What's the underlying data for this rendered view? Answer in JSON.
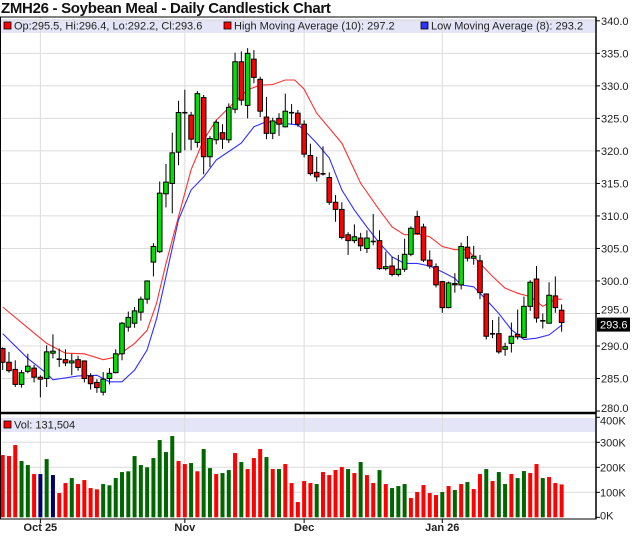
{
  "title": "ZMH26 - Soybean Meal - Daily Candlestick Chart",
  "legend": {
    "ohlc": "Op:295.5, Hi:296.4, Lo:292.2, Cl:293.6",
    "high_ma": "High Moving Average (10): 297.2",
    "low_ma": "Low Moving Average (8): 293.2",
    "volume": "Vol: 131,504"
  },
  "last_price_label": "293.6",
  "colors": {
    "up": "#00e000",
    "down": "#ff0000",
    "high_ma": "#ff3030",
    "low_ma": "#3030ff",
    "vol_up": "#006600",
    "vol_down": "#ff0000",
    "vol_other": "#000066",
    "legend_band": "#e4e6f8"
  },
  "chart_data": [
    {
      "type": "candlestick",
      "title": "ZMH26 - Soybean Meal - Daily Candlestick Chart",
      "ylim": [
        280,
        340
      ],
      "y_ticks": [
        "280.0",
        "285.0",
        "290.0",
        "295.0",
        "300.0",
        "305.0",
        "310.0",
        "315.0",
        "320.0",
        "325.0",
        "330.0",
        "335.0",
        "340.0"
      ],
      "x_ticks": [
        {
          "label": "Oct 25",
          "index": 6
        },
        {
          "label": "Nov",
          "index": 29
        },
        {
          "label": "Dec",
          "index": 48
        },
        {
          "label": "Jan 26",
          "index": 70
        }
      ],
      "grid": true,
      "ohlc": [
        [
          289.6,
          289.8,
          286.3,
          287.5
        ],
        [
          287.5,
          289.1,
          285.9,
          286.2
        ],
        [
          286.4,
          287.8,
          283.7,
          284.1
        ],
        [
          284.1,
          286.3,
          283.6,
          285.9
        ],
        [
          286.1,
          288.8,
          285.8,
          286.9
        ],
        [
          286.6,
          287.1,
          284.4,
          285.2
        ],
        [
          285.2,
          285.5,
          282.1,
          284.9
        ],
        [
          285.0,
          290.1,
          283.7,
          289.1
        ],
        [
          288.9,
          291.8,
          288.1,
          289.2
        ],
        [
          288.0,
          289.6,
          286.8,
          287.9
        ],
        [
          287.9,
          289.5,
          286.9,
          287.4
        ],
        [
          287.4,
          288.8,
          285.5,
          287.7
        ],
        [
          287.9,
          288.5,
          286.2,
          286.7
        ],
        [
          287.7,
          287.8,
          284.4,
          285.0
        ],
        [
          285.4,
          285.8,
          283.3,
          284.2
        ],
        [
          284.4,
          284.9,
          282.8,
          283.6
        ],
        [
          282.9,
          286.0,
          282.4,
          284.9
        ],
        [
          285.0,
          286.6,
          284.1,
          285.8
        ],
        [
          285.9,
          289.5,
          285.8,
          288.8
        ],
        [
          288.8,
          293.7,
          287.8,
          293.5
        ],
        [
          292.9,
          295.3,
          292.2,
          294.4
        ],
        [
          293.5,
          296.0,
          292.8,
          295.4
        ],
        [
          295.2,
          297.6,
          293.9,
          297.2
        ],
        [
          297.2,
          300.1,
          296.5,
          300.0
        ],
        [
          302.9,
          305.8,
          300.7,
          305.3
        ],
        [
          304.5,
          315.3,
          304.3,
          313.5
        ],
        [
          313.4,
          318.0,
          311.3,
          315.2
        ],
        [
          315.0,
          322.8,
          310.4,
          319.7
        ],
        [
          319.8,
          327.7,
          317.8,
          325.9
        ],
        [
          325.9,
          329.4,
          320.1,
          325.9
        ],
        [
          325.5,
          326.0,
          320.1,
          321.8
        ],
        [
          321.3,
          329.2,
          320.5,
          328.8
        ],
        [
          328.2,
          328.6,
          316.4,
          319.1
        ],
        [
          319.1,
          322.3,
          317.5,
          321.9
        ],
        [
          321.7,
          324.8,
          321.0,
          324.4
        ],
        [
          322.8,
          324.1,
          320.3,
          321.8
        ],
        [
          321.7,
          327.3,
          321.2,
          326.7
        ],
        [
          326.4,
          335.1,
          325.8,
          333.7
        ],
        [
          333.7,
          335.3,
          327.0,
          327.8
        ],
        [
          327.0,
          335.8,
          325.0,
          335.0
        ],
        [
          334.1,
          335.5,
          330.4,
          331.3
        ],
        [
          331.0,
          331.4,
          325.2,
          326.1
        ],
        [
          325.2,
          328.3,
          321.8,
          322.7
        ],
        [
          322.7,
          325.1,
          321.8,
          324.6
        ],
        [
          325.0,
          325.8,
          322.3,
          324.1
        ],
        [
          323.7,
          328.8,
          323.6,
          326.1
        ],
        [
          325.9,
          327.2,
          324.1,
          325.8
        ],
        [
          325.8,
          326.3,
          323.7,
          324.1
        ],
        [
          324.1,
          324.7,
          319.0,
          319.5
        ],
        [
          319.3,
          321.1,
          316.2,
          316.5
        ],
        [
          316.7,
          319.1,
          315.3,
          316.0
        ],
        [
          316.5,
          320.7,
          316.2,
          316.4
        ],
        [
          315.9,
          316.7,
          311.7,
          312.1
        ],
        [
          312.1,
          313.2,
          309.1,
          311.0
        ],
        [
          311.0,
          312.1,
          306.4,
          306.7
        ],
        [
          307.1,
          307.5,
          304.0,
          306.2
        ],
        [
          306.2,
          308.7,
          305.8,
          306.8
        ],
        [
          306.6,
          307.4,
          304.6,
          305.4
        ],
        [
          305.0,
          307.8,
          304.3,
          306.6
        ],
        [
          306.1,
          310.3,
          305.5,
          306.0
        ],
        [
          306.2,
          307.8,
          301.7,
          301.9
        ],
        [
          301.9,
          304.5,
          301.6,
          302.2
        ],
        [
          302.3,
          303.7,
          300.7,
          301.0
        ],
        [
          301.0,
          304.0,
          300.7,
          301.8
        ],
        [
          301.8,
          306.5,
          301.4,
          304.1
        ],
        [
          304.1,
          308.4,
          303.8,
          308.1
        ],
        [
          309.9,
          310.8,
          307.1,
          307.3
        ],
        [
          308.3,
          308.8,
          302.9,
          303.2
        ],
        [
          303.2,
          304.7,
          301.9,
          302.3
        ],
        [
          302.2,
          302.7,
          299.0,
          299.4
        ],
        [
          299.9,
          300.0,
          295.1,
          295.9
        ],
        [
          295.9,
          299.9,
          295.8,
          299.7
        ],
        [
          299.6,
          301.2,
          298.2,
          299.4
        ],
        [
          299.4,
          305.9,
          298.7,
          305.3
        ],
        [
          305.2,
          306.9,
          303.0,
          303.5
        ],
        [
          303.5,
          305.4,
          302.5,
          303.8
        ],
        [
          303.1,
          304.0,
          297.2,
          298.2
        ],
        [
          298.0,
          298.1,
          291.0,
          291.5
        ],
        [
          291.9,
          294.0,
          291.2,
          291.8
        ],
        [
          291.9,
          294.5,
          288.8,
          289.1
        ],
        [
          289.5,
          290.5,
          288.5,
          289.9
        ],
        [
          290.4,
          293.6,
          289.0,
          291.5
        ],
        [
          291.8,
          295.6,
          291.0,
          291.4
        ],
        [
          291.3,
          297.6,
          291.2,
          296.1
        ],
        [
          296.1,
          300.1,
          295.4,
          299.8
        ],
        [
          300.3,
          302.3,
          293.6,
          294.3
        ],
        [
          293.9,
          295.0,
          292.7,
          293.8
        ],
        [
          293.5,
          299.8,
          293.5,
          297.8
        ],
        [
          297.7,
          300.7,
          295.1,
          295.9
        ],
        [
          295.5,
          296.4,
          292.2,
          293.6
        ]
      ],
      "series": [
        {
          "name": "High Moving Average (10)",
          "points": [
            [
              0,
              296.0
            ],
            [
              4,
              292.8
            ],
            [
              7,
              290.4
            ],
            [
              10,
              288.9
            ],
            [
              13,
              288.8
            ],
            [
              16,
              287.9
            ],
            [
              18,
              288.3
            ],
            [
              21,
              290.4
            ],
            [
              23,
              292.4
            ],
            [
              24.5,
              296.6
            ],
            [
              26,
              302.7
            ],
            [
              28,
              309.9
            ],
            [
              30,
              317.1
            ],
            [
              32,
              321.7
            ],
            [
              34,
              324.7
            ],
            [
              37,
              327.6
            ],
            [
              39,
              329.4
            ],
            [
              41,
              330.1
            ],
            [
              43,
              330.2
            ],
            [
              45,
              330.9
            ],
            [
              46.5,
              330.9
            ],
            [
              48,
              329.5
            ],
            [
              50,
              325.8
            ],
            [
              54,
              321.2
            ],
            [
              57,
              315.0
            ],
            [
              60,
              310.9
            ],
            [
              62,
              308.3
            ],
            [
              64,
              307.1
            ],
            [
              66,
              307.2
            ],
            [
              68,
              306.8
            ],
            [
              70,
              305.3
            ],
            [
              72,
              304.8
            ],
            [
              74,
              304.8
            ],
            [
              76,
              302.7
            ],
            [
              78,
              300.7
            ],
            [
              80,
              298.9
            ],
            [
              82,
              298.1
            ],
            [
              84,
              297.6
            ],
            [
              86,
              296.1
            ],
            [
              88,
              297.2
            ],
            [
              89,
              297.2
            ]
          ]
        },
        {
          "name": "Low Moving Average (8)",
          "points": [
            [
              0,
              291.9
            ],
            [
              4,
              288.1
            ],
            [
              7,
              285.8
            ],
            [
              8,
              284.8
            ],
            [
              12,
              285.4
            ],
            [
              15,
              285.5
            ],
            [
              17,
              284.5
            ],
            [
              19,
              284.5
            ],
            [
              21,
              286.3
            ],
            [
              23,
              289.4
            ],
            [
              24.5,
              294.2
            ],
            [
              26,
              300.7
            ],
            [
              28,
              309.4
            ],
            [
              30,
              314.0
            ],
            [
              32,
              316.0
            ],
            [
              34,
              318.6
            ],
            [
              36,
              319.9
            ],
            [
              38,
              321.2
            ],
            [
              40,
              323.7
            ],
            [
              42,
              324.5
            ],
            [
              45,
              324.2
            ],
            [
              47,
              324.0
            ],
            [
              48,
              323.2
            ],
            [
              50,
              321.2
            ],
            [
              52,
              318.9
            ],
            [
              54,
              314.0
            ],
            [
              56,
              310.9
            ],
            [
              58,
              308.3
            ],
            [
              60,
              305.8
            ],
            [
              62,
              303.7
            ],
            [
              64,
              302.7
            ],
            [
              66,
              302.7
            ],
            [
              68,
              302.3
            ],
            [
              70,
              301.4
            ],
            [
              72,
              300.4
            ],
            [
              73,
              299.4
            ],
            [
              75,
              299.1
            ],
            [
              77,
              297.1
            ],
            [
              79,
              295.0
            ],
            [
              81,
              292.5
            ],
            [
              83,
              291.0
            ],
            [
              85,
              291.2
            ],
            [
              87,
              291.7
            ],
            [
              89,
              293.2
            ]
          ]
        }
      ]
    },
    {
      "type": "bar",
      "ylim": [
        0,
        400
      ],
      "y_ticks": [
        "0K",
        "100K",
        "200K",
        "300K",
        "400K"
      ],
      "volume_k": [
        249,
        245,
        289,
        225,
        209,
        173,
        173,
        233,
        169,
        97,
        137,
        157,
        133,
        149,
        117,
        112,
        133,
        128,
        157,
        181,
        184,
        245,
        209,
        200,
        237,
        309,
        261,
        325,
        225,
        213,
        217,
        184,
        273,
        197,
        173,
        177,
        189,
        257,
        221,
        193,
        237,
        273,
        241,
        193,
        193,
        213,
        137,
        61,
        145,
        137,
        133,
        181,
        169,
        189,
        201,
        193,
        177,
        221,
        169,
        137,
        189,
        133,
        117,
        125,
        133,
        77,
        101,
        129,
        97,
        89,
        101,
        125,
        109,
        133,
        141,
        113,
        173,
        193,
        145,
        181,
        133,
        173,
        157,
        185,
        177,
        213,
        157,
        161,
        137,
        131.504
      ],
      "volume_colors": "rrrggrbgbrrgrrrrggggggggggggrrgrggrggrgrrrgrgrrrrrgrrrrgrgrrgrgggrrrrrgrgrgrrgrggrggrrgrr"
    }
  ]
}
